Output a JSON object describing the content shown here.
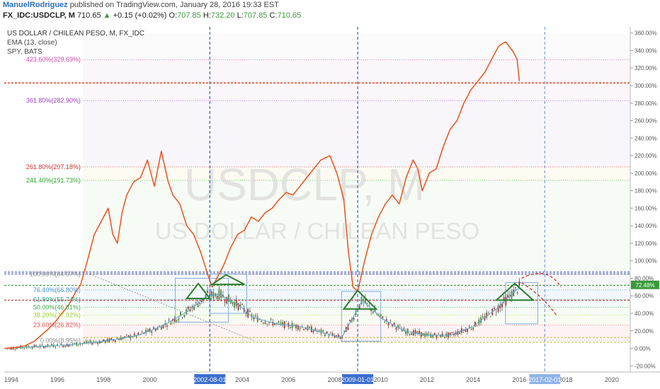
{
  "header": {
    "author": "ManuelRodriguez",
    "published": "published on TradingView.com, January 28, 2016 19:33 EST",
    "symbol": "FX_IDC:USDCLP, M",
    "last": "710.65",
    "change_arrow": "▲",
    "change": "+0.15 (+0.02%)",
    "o_label": "O:",
    "o_value": "707.85",
    "h_label": "H:",
    "h_value": "732.20",
    "l_label": "L:",
    "l_value": "707.85",
    "c_label": "C:",
    "c_value": "710.65"
  },
  "legend": {
    "line1": "US DOLLAR / CHILEAN PESO, M, FX_IDC",
    "line2": "EMA (13, close)",
    "line3": "SPY, BATS"
  },
  "watermark": {
    "big": "USDCLP, M",
    "small": "US DOLLAR / CHILEAN PESO"
  },
  "colors": {
    "spy_line": "#e8521c",
    "candle_up": "#4a8a3a",
    "candle_down": "#9e3a3a",
    "ema": "#5aa7c7",
    "vline_blue": "#2b5fcf",
    "red_level": "#e03a1a",
    "pattern_green": "#2e7d2e",
    "pct_badge": "#3a9a3a"
  },
  "chart_data": {
    "type": "line",
    "title": "US DOLLAR / CHILEAN PESO, M, FX_IDC",
    "xlabel": "",
    "ylabel": "",
    "x_range": [
      1993.7,
      2020.8
    ],
    "ylim": [
      -27,
      367
    ],
    "y_ticks": [
      -20,
      0,
      20,
      40,
      60,
      80,
      100,
      120,
      140,
      160,
      180,
      200,
      220,
      240,
      260,
      280,
      300,
      320,
      340,
      360
    ],
    "y_tick_labels": [
      "-20.00%",
      "0.00%",
      "20.00%",
      "40.00%",
      "60.00%",
      "80.00%",
      "100.00%",
      "120.00%",
      "140.00%",
      "160.00%",
      "180.00%",
      "200.00%",
      "220.00%",
      "240.00%",
      "260.00%",
      "280.00%",
      "300.00%",
      "320.00%",
      "340.00%",
      "360.00%"
    ],
    "x_ticks": [
      1994,
      1996,
      1998,
      2000,
      2004,
      2006,
      2008,
      2010,
      2012,
      2014,
      2016,
      2018,
      2020
    ],
    "x_tick_labels": [
      "1994",
      "1996",
      "1998",
      "2000",
      "2004",
      "2006",
      "2008",
      "2010",
      "2012",
      "2014",
      "2016",
      "2018",
      "2020"
    ],
    "x_tag_labels": [
      {
        "x": 2002.6,
        "label": "2002-08-01"
      },
      {
        "x": 2009.0,
        "label": "2009-01-01"
      },
      {
        "x": 2017.1,
        "label": "2017-02-01"
      }
    ],
    "grid": false,
    "fib_levels": [
      {
        "label": "0.00%(8.95%)",
        "value": 8.95,
        "color": "#8a8a8a"
      },
      {
        "label": "23.60%(26.82%)",
        "value": 26.82,
        "color": "#e05050"
      },
      {
        "label": "38.20%(37.92%)",
        "value": 37.92,
        "color": "#9acd32"
      },
      {
        "label": "50.00%(46.81%)",
        "value": 46.81,
        "color": "#3aa84a"
      },
      {
        "label": "61.80%(55.74%)",
        "value": 55.74,
        "color": "#2e9a8a"
      },
      {
        "label": "76.40%(66.80%)",
        "value": 66.8,
        "color": "#3a8fd0"
      },
      {
        "label": "100.00%(84.67%)",
        "value": 84.67,
        "color": "#8a8a8a"
      },
      {
        "label": "241.40%(191.73%)",
        "value": 191.73,
        "color": "#22aa22"
      },
      {
        "label": "261.80%(207.18%)",
        "value": 207.18,
        "color": "#cc3333"
      },
      {
        "label": "361.80%(282.90%)",
        "value": 282.9,
        "color": "#a040c0"
      },
      {
        "label": "423.60%(329.69%)",
        "value": 329.69,
        "color": "#cc44aa"
      }
    ],
    "red_level_value": 303,
    "current_value_label": "72.48%",
    "current_value": 72.48,
    "series": [
      {
        "name": "SPY, BATS",
        "x": [
          1993.7,
          1994.2,
          1994.6,
          1995.0,
          1995.3,
          1995.6,
          1995.9,
          1996.2,
          1996.5,
          1996.8,
          1997.0,
          1997.3,
          1997.6,
          1997.9,
          1998.2,
          1998.4,
          1998.6,
          1998.8,
          1999.0,
          1999.3,
          1999.6,
          1999.9,
          2000.2,
          2000.5,
          2000.8,
          2001.0,
          2001.3,
          2001.6,
          2001.9,
          2002.2,
          2002.5,
          2002.7,
          2002.9,
          2003.2,
          2003.5,
          2003.8,
          2004.1,
          2004.4,
          2004.7,
          2005.0,
          2005.3,
          2005.6,
          2005.9,
          2006.2,
          2006.5,
          2006.8,
          2007.1,
          2007.4,
          2007.8,
          2008.1,
          2008.4,
          2008.6,
          2008.8,
          2009.0,
          2009.3,
          2009.6,
          2009.9,
          2010.2,
          2010.5,
          2010.8,
          2011.1,
          2011.4,
          2011.6,
          2011.8,
          2012.1,
          2012.4,
          2012.7,
          2013.0,
          2013.3,
          2013.6,
          2013.9,
          2014.2,
          2014.5,
          2014.8,
          2015.1,
          2015.4,
          2015.7,
          2015.9,
          2016.0
        ],
        "y": [
          0,
          1,
          3,
          8,
          15,
          22,
          30,
          40,
          50,
          65,
          72,
          100,
          130,
          145,
          160,
          130,
          120,
          155,
          175,
          190,
          195,
          215,
          185,
          225,
          190,
          175,
          165,
          140,
          130,
          110,
          85,
          70,
          80,
          95,
          115,
          130,
          135,
          150,
          145,
          155,
          160,
          170,
          178,
          175,
          185,
          195,
          205,
          215,
          220,
          200,
          170,
          110,
          70,
          65,
          100,
          130,
          150,
          165,
          175,
          165,
          195,
          215,
          205,
          180,
          200,
          205,
          230,
          250,
          260,
          280,
          295,
          305,
          315,
          330,
          345,
          350,
          340,
          330,
          305
        ]
      },
      {
        "name": "EMA (13, close)",
        "x": [
          1993.7,
          1995.0,
          1996.5,
          1998.0,
          1999.5,
          2000.5,
          2001.5,
          2002.5,
          2003.0,
          2003.8,
          2004.5,
          2005.5,
          2006.5,
          2007.5,
          2008.3,
          2008.8,
          2009.2,
          2010.0,
          2011.0,
          2012.0,
          2013.0,
          2014.0,
          2015.0,
          2015.8,
          2016.0
        ],
        "y": [
          0,
          2,
          4,
          8,
          15,
          25,
          40,
          60,
          62,
          50,
          35,
          28,
          25,
          18,
          12,
          35,
          55,
          35,
          20,
          15,
          15,
          25,
          45,
          65,
          70
        ]
      }
    ]
  }
}
